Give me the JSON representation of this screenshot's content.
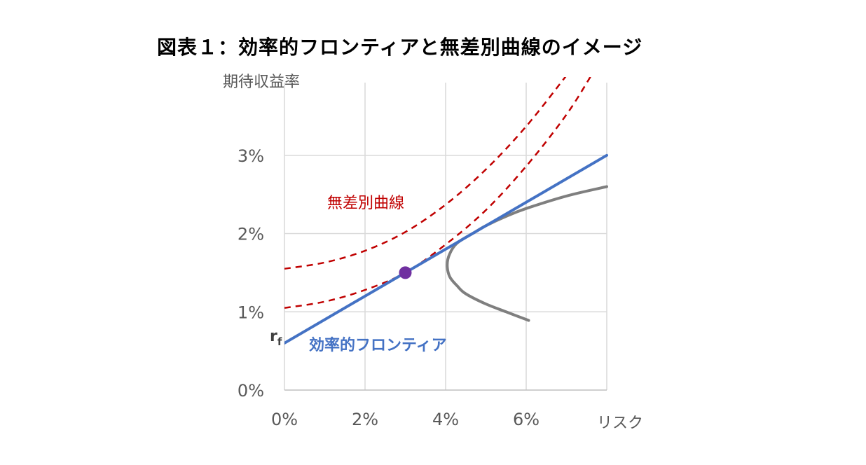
{
  "title": "図表１：効率的フロンティアと無差別曲線のイメージ",
  "chart_data": {
    "type": "line",
    "title": "図表１：効率的フロンティアと無差別曲線のイメージ",
    "xlabel": "リスク",
    "ylabel": "期待収益率",
    "xlim": [
      0,
      0.08
    ],
    "ylim": [
      0,
      0.04
    ],
    "x_ticks": [
      "0%",
      "2%",
      "4%",
      "6%"
    ],
    "y_ticks": [
      "0%",
      "1%",
      "2%",
      "3%"
    ],
    "grid": true,
    "annotations": {
      "indifference": "無差別曲線",
      "frontier": "効率的フロンティア",
      "rf": "r",
      "rf_sub": "f"
    },
    "colors": {
      "frontier": "#4472c4",
      "indifference": "#c00000",
      "opportunity": "#7f7f7f",
      "tangency": "#7030a0",
      "grid": "#d9d9d9"
    },
    "series": [
      {
        "key": "frontier",
        "style": "solid",
        "points": [
          [
            0.0,
            0.006
          ],
          [
            0.08,
            0.03
          ]
        ]
      },
      {
        "key": "indifference",
        "style": "dashed",
        "points": [
          [
            0.0,
            0.0105
          ],
          [
            0.01,
            0.0113
          ],
          [
            0.02,
            0.0128
          ],
          [
            0.03,
            0.015
          ],
          [
            0.04,
            0.0186
          ],
          [
            0.05,
            0.023
          ],
          [
            0.06,
            0.0286
          ],
          [
            0.07,
            0.0352
          ],
          [
            0.0765,
            0.0405
          ]
        ]
      },
      {
        "key": "indifference",
        "style": "dashed",
        "points": [
          [
            0.0,
            0.0155
          ],
          [
            0.01,
            0.0163
          ],
          [
            0.02,
            0.0178
          ],
          [
            0.03,
            0.0202
          ],
          [
            0.04,
            0.0237
          ],
          [
            0.05,
            0.0282
          ],
          [
            0.06,
            0.0337
          ],
          [
            0.07,
            0.0402
          ]
        ]
      },
      {
        "key": "opportunity",
        "style": "solid",
        "points": [
          [
            0.0606,
            0.0089
          ],
          [
            0.055,
            0.01
          ],
          [
            0.05,
            0.011
          ],
          [
            0.045,
            0.0123
          ],
          [
            0.0429,
            0.0133
          ],
          [
            0.041,
            0.0145
          ],
          [
            0.0404,
            0.016
          ],
          [
            0.041,
            0.0174
          ],
          [
            0.0429,
            0.0188
          ],
          [
            0.047,
            0.0201
          ],
          [
            0.05,
            0.021
          ],
          [
            0.055,
            0.0222
          ],
          [
            0.06,
            0.0232
          ],
          [
            0.07,
            0.0248
          ],
          [
            0.08,
            0.026
          ]
        ]
      }
    ],
    "tangency_point": [
      0.03,
      0.015
    ]
  }
}
